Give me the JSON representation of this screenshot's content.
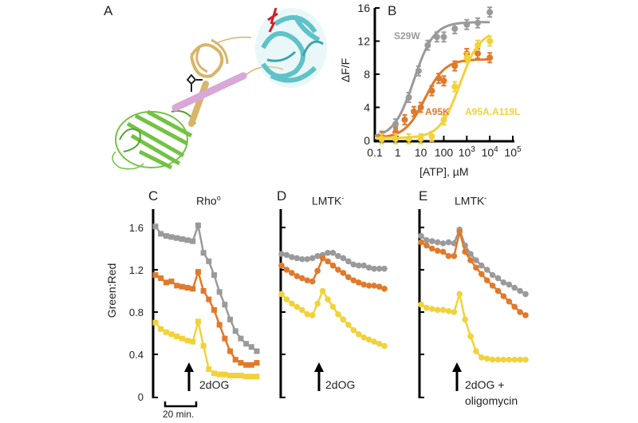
{
  "figure": {
    "panels": {
      "A": {
        "letter": "A",
        "content": "protein structure ribbon diagram"
      },
      "B": {
        "letter": "B"
      },
      "C": {
        "letter": "C",
        "title": "Rho",
        "title_sup": "o"
      },
      "D": {
        "letter": "D",
        "title": "LMTK",
        "title_sup": "-"
      },
      "E": {
        "letter": "E",
        "title": "LMTK",
        "title_sup": "-"
      }
    },
    "colors": {
      "gray": "#9a9a9a",
      "orange": "#e07a2a",
      "yellow": "#f1d23a",
      "structure_green": "#6cbf3c",
      "structure_cyan": "#5fc2c8",
      "structure_tan": "#d8b56a",
      "structure_pink": "#d9a7d8",
      "structure_red": "#d0222a"
    }
  },
  "chart_data": [
    {
      "panel": "B",
      "type": "scatter",
      "title": "",
      "xlabel": "[ATP], µM",
      "ylabel": "ΔF/F",
      "xscale": "log",
      "xlim": [
        0.1,
        100000
      ],
      "ylim": [
        0,
        16
      ],
      "xticks": [
        "0.1",
        "1",
        "10",
        "100",
        "10^3",
        "10^4",
        "10^5"
      ],
      "yticks": [
        "0",
        "4",
        "8",
        "12",
        "16"
      ],
      "grid": false,
      "series": [
        {
          "name": "S29W",
          "color": "#9a9a9a",
          "x": [
            0.2,
            0.8,
            3,
            8,
            20,
            50,
            100,
            300,
            1000,
            3000,
            10000
          ],
          "y": [
            0.5,
            2,
            5.2,
            8.4,
            11.5,
            12.5,
            12.5,
            13.5,
            14,
            14.2,
            15.5
          ],
          "fit_max": 14,
          "fit_ec50": 5
        },
        {
          "name": "A95K",
          "color": "#e07a2a",
          "x": [
            0.2,
            0.8,
            2,
            5,
            10,
            30,
            60,
            100,
            300,
            1000,
            3000,
            10000
          ],
          "y": [
            0.5,
            1,
            2.5,
            3.5,
            4,
            6,
            7.5,
            7.2,
            9,
            10.5,
            10.5,
            10
          ],
          "fit_max": 9.5,
          "fit_ec50": 15
        },
        {
          "name": "A95A.A119L",
          "color": "#f1d23a",
          "x": [
            0.2,
            0.8,
            3,
            10,
            30,
            100,
            300,
            1000,
            3000,
            10000
          ],
          "y": [
            0.2,
            0.2,
            0.2,
            0.2,
            0.5,
            2.5,
            6.5,
            10,
            11.5,
            12
          ],
          "fit_max": 13,
          "fit_ec50": 500
        }
      ]
    },
    {
      "panel": "C",
      "type": "line",
      "title": "Rho°",
      "ylabel": "Green:Red",
      "ylim": [
        0,
        1.8
      ],
      "yticks": [
        "0",
        "0.4",
        "0.8",
        "1.2",
        "1.6"
      ],
      "scalebar": "20 min.",
      "annotation": "2dOG",
      "marker": "square",
      "series": [
        {
          "name": "gray",
          "color": "#9a9a9a",
          "y": [
            1.61,
            1.54,
            1.52,
            1.51,
            1.5,
            1.49,
            1.48,
            1.47,
            1.62,
            1.36,
            1.28,
            1.15,
            0.99,
            0.87,
            0.73,
            0.62,
            0.55,
            0.5,
            0.47,
            0.43
          ]
        },
        {
          "name": "orange",
          "color": "#e07a2a",
          "y": [
            1.15,
            1.12,
            1.08,
            1.09,
            1.05,
            1.04,
            1.03,
            1.02,
            1.18,
            1.0,
            0.92,
            0.82,
            0.68,
            0.55,
            0.43,
            0.35,
            0.32,
            0.3,
            0.3,
            0.32
          ]
        },
        {
          "name": "yellow",
          "color": "#f1d23a",
          "y": [
            0.7,
            0.64,
            0.61,
            0.59,
            0.57,
            0.55,
            0.53,
            0.52,
            0.71,
            0.48,
            0.26,
            0.22,
            0.21,
            0.21,
            0.2,
            0.2,
            0.2,
            0.19,
            0.19,
            0.19
          ]
        }
      ]
    },
    {
      "panel": "D",
      "type": "line",
      "title": "LMTK-",
      "annotation": "2dOG",
      "marker": "circle",
      "ylim": [
        0,
        1.8
      ],
      "series": [
        {
          "name": "gray",
          "color": "#9a9a9a",
          "y": [
            1.35,
            1.34,
            1.32,
            1.31,
            1.3,
            1.3,
            1.31,
            1.33,
            1.34,
            1.36,
            1.36,
            1.33,
            1.31,
            1.28,
            1.25,
            1.24,
            1.24,
            1.22,
            1.21,
            1.21,
            1.21
          ]
        },
        {
          "name": "orange",
          "color": "#e07a2a",
          "y": [
            1.24,
            1.2,
            1.17,
            1.14,
            1.12,
            1.1,
            1.09,
            1.19,
            1.31,
            1.28,
            1.24,
            1.2,
            1.17,
            1.13,
            1.1,
            1.08,
            1.06,
            1.05,
            1.05,
            1.04,
            1.02
          ]
        },
        {
          "name": "yellow",
          "color": "#f1d23a",
          "y": [
            0.97,
            0.92,
            0.88,
            0.85,
            0.82,
            0.78,
            0.77,
            0.88,
            1.0,
            0.92,
            0.85,
            0.78,
            0.73,
            0.68,
            0.63,
            0.59,
            0.56,
            0.54,
            0.52,
            0.5,
            0.48
          ]
        }
      ]
    },
    {
      "panel": "E",
      "type": "line",
      "title": "LMTK-",
      "annotation": "2dOG + oligomycin",
      "marker": "circle",
      "ylim": [
        0,
        1.8
      ],
      "series": [
        {
          "name": "gray",
          "color": "#9a9a9a",
          "y": [
            1.52,
            1.48,
            1.47,
            1.46,
            1.45,
            1.46,
            1.45,
            1.58,
            1.43,
            1.35,
            1.29,
            1.24,
            1.2,
            1.15,
            1.12,
            1.08,
            1.06,
            1.03,
            1.0,
            0.97
          ]
        },
        {
          "name": "orange",
          "color": "#e07a2a",
          "y": [
            1.46,
            1.43,
            1.4,
            1.38,
            1.37,
            1.33,
            1.33,
            1.56,
            1.37,
            1.29,
            1.22,
            1.16,
            1.1,
            1.05,
            1.0,
            0.95,
            0.9,
            0.85,
            0.8,
            0.77
          ]
        },
        {
          "name": "yellow",
          "color": "#f1d23a",
          "y": [
            0.87,
            0.84,
            0.83,
            0.82,
            0.82,
            0.81,
            0.8,
            0.97,
            0.73,
            0.57,
            0.43,
            0.37,
            0.36,
            0.35,
            0.35,
            0.35,
            0.35,
            0.35,
            0.35,
            0.35
          ]
        }
      ]
    }
  ],
  "labels": {
    "B_series": {
      "s29w": "S29W",
      "a95k": "A95K",
      "a95a": "A95A.A119L"
    },
    "B_xlabel": "[ATP], µM",
    "B_ylabel": "ΔF/F",
    "C_ylabel": "Green:Red",
    "C_scalebar": "20 min.",
    "C_arrow": "2dOG",
    "D_arrow": "2dOG",
    "E_arrow_line1": "2dOG +",
    "E_arrow_line2": "oligomycin"
  }
}
